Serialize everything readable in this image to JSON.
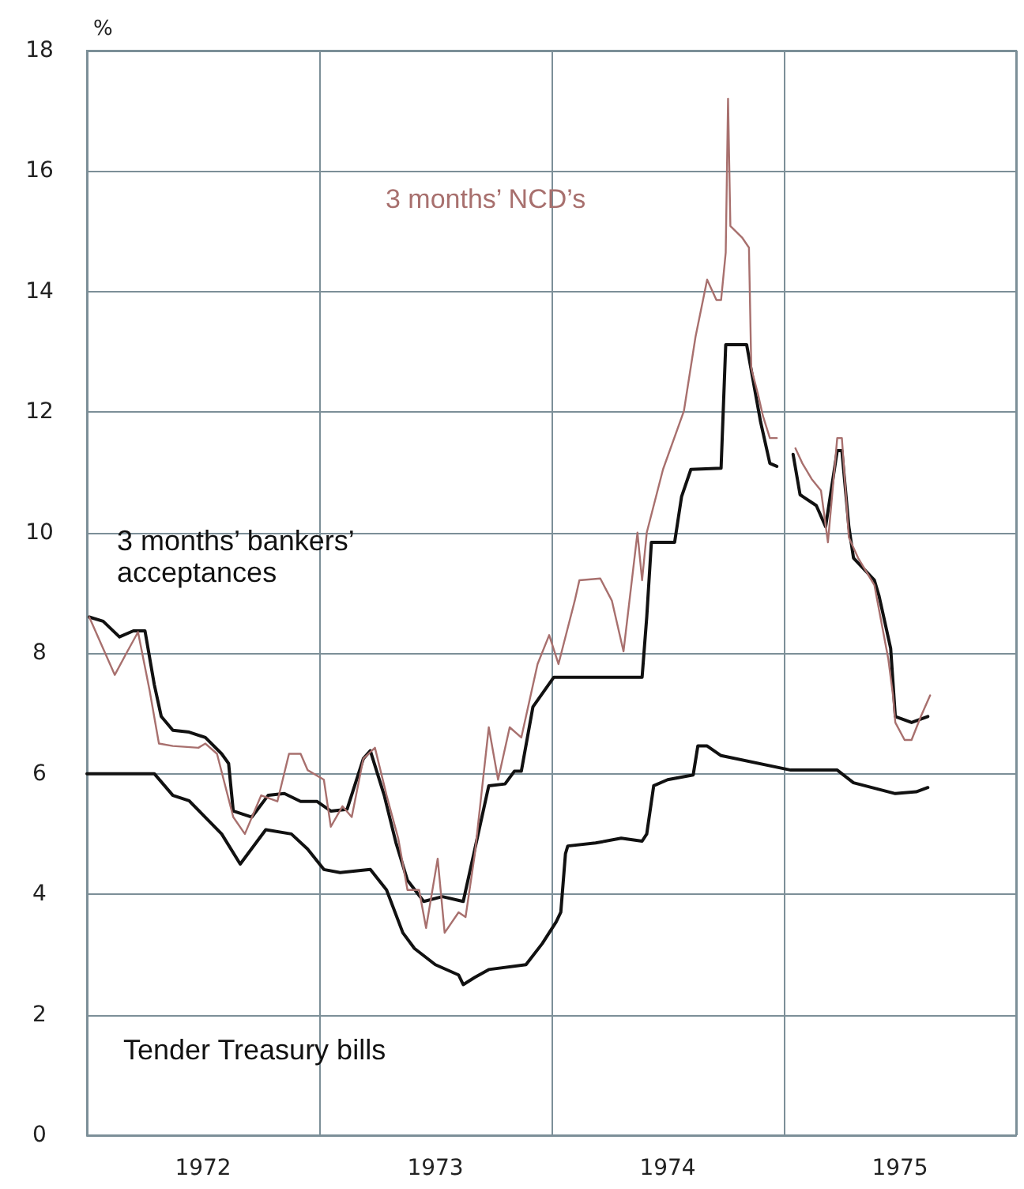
{
  "chart_data": {
    "type": "line",
    "ylabel": "%",
    "xlim": [
      1972,
      1976
    ],
    "ylim": [
      0,
      18
    ],
    "xticks": [
      {
        "value": 1972,
        "label": null
      },
      {
        "value": 1972.5,
        "label": "1972"
      },
      {
        "value": 1973,
        "label": null
      },
      {
        "value": 1973.5,
        "label": "1973"
      },
      {
        "value": 1974,
        "label": null
      },
      {
        "value": 1974.5,
        "label": "1974"
      },
      {
        "value": 1975,
        "label": null
      },
      {
        "value": 1975.5,
        "label": "1975"
      },
      {
        "value": 1976,
        "label": null
      }
    ],
    "yticks": [
      0,
      2,
      4,
      6,
      8,
      10,
      12,
      14,
      16,
      18
    ],
    "grid": true,
    "legend": false,
    "marker": "none",
    "line_style": "solid",
    "series": [
      {
        "name": "3 months’ NCD’s",
        "color": "#a8706e",
        "x": [
          1972.01,
          1972.12,
          1972.17,
          1972.22,
          1972.27,
          1972.31,
          1972.37,
          1972.48,
          1972.51,
          1972.56,
          1972.63,
          1972.68,
          1972.75,
          1972.82,
          1972.87,
          1972.92,
          1972.95,
          1973.02,
          1973.05,
          1973.1,
          1973.14,
          1973.19,
          1973.24,
          1973.29,
          1973.34,
          1973.38,
          1973.43,
          1973.46,
          1973.51,
          1973.54,
          1973.6,
          1973.63,
          1973.67,
          1973.73,
          1973.77,
          1973.82,
          1973.87,
          1973.94,
          1973.99,
          1974.03,
          1974.1,
          1974.12,
          1974.21,
          1974.26,
          1974.31,
          1974.37,
          1974.39,
          1974.41,
          1974.48,
          1974.57,
          1974.62,
          1974.67,
          1974.71,
          1974.73,
          1974.75,
          1974.76,
          1974.77,
          1974.82,
          1974.85,
          1974.86,
          1974.89,
          1974.91,
          1974.94,
          1974.97,
          1974.99,
          1975.05,
          1975.08,
          1975.12,
          1975.16,
          1975.19,
          1975.23,
          1975.25,
          1975.28,
          1975.32,
          1975.39,
          1975.45,
          1975.47,
          1975.48,
          1975.52,
          1975.55,
          1975.59,
          1975.63
        ],
        "values": [
          8.6,
          7.64,
          8.0,
          8.35,
          7.38,
          6.5,
          6.46,
          6.43,
          6.5,
          6.33,
          5.28,
          5.0,
          5.64,
          5.54,
          6.33,
          6.33,
          6.06,
          5.9,
          5.12,
          5.46,
          5.28,
          6.25,
          6.43,
          5.64,
          4.93,
          4.07,
          4.07,
          3.44,
          4.59,
          3.36,
          3.7,
          3.62,
          4.67,
          6.77,
          5.9,
          6.77,
          6.6,
          7.82,
          8.3,
          7.82,
          8.87,
          9.21,
          9.24,
          8.87,
          8.03,
          10.0,
          9.21,
          10.0,
          11.05,
          12.02,
          13.25,
          14.2,
          13.86,
          13.86,
          14.65,
          17.2,
          15.09,
          14.9,
          14.73,
          12.73,
          12.28,
          11.94,
          11.57,
          11.57,
          null,
          11.4,
          11.15,
          10.89,
          10.7,
          9.84,
          11.57,
          11.57,
          9.92,
          9.58,
          9.13,
          7.9,
          7.3,
          6.85,
          6.56,
          6.56,
          6.95,
          7.3
        ]
      },
      {
        "name": "3 months’ bankers’ acceptances",
        "color": "#111111",
        "x": [
          1972.01,
          1972.07,
          1972.14,
          1972.2,
          1972.25,
          1972.29,
          1972.32,
          1972.37,
          1972.44,
          1972.51,
          1972.58,
          1972.61,
          1972.63,
          1972.71,
          1972.78,
          1972.85,
          1972.92,
          1972.99,
          1973.05,
          1973.12,
          1973.19,
          1973.22,
          1973.28,
          1973.33,
          1973.38,
          1973.45,
          1973.53,
          1973.62,
          1973.67,
          1973.73,
          1973.8,
          1973.84,
          1973.87,
          1973.92,
          1974.01,
          1974.39,
          1974.41,
          1974.43,
          1974.53,
          1974.56,
          1974.6,
          1974.73,
          1974.75,
          1974.84,
          1974.9,
          1974.94,
          1974.97,
          1974.99,
          1975.04,
          1975.07,
          1975.14,
          1975.18,
          1975.23,
          1975.25,
          1975.28,
          1975.3,
          1975.39,
          1975.41,
          1975.46,
          1975.48,
          1975.55,
          1975.62
        ],
        "values": [
          8.6,
          8.53,
          8.27,
          8.37,
          8.37,
          7.48,
          6.95,
          6.72,
          6.69,
          6.6,
          6.33,
          6.17,
          5.38,
          5.28,
          5.64,
          5.67,
          5.54,
          5.54,
          5.38,
          5.41,
          6.25,
          6.38,
          5.64,
          4.86,
          4.23,
          3.88,
          3.96,
          3.88,
          4.75,
          5.8,
          5.83,
          6.04,
          6.04,
          7.11,
          7.6,
          7.6,
          8.6,
          9.84,
          9.84,
          10.6,
          11.05,
          11.07,
          13.12,
          13.12,
          11.84,
          11.15,
          11.1,
          null,
          11.3,
          10.63,
          10.45,
          10.1,
          11.36,
          11.36,
          10.1,
          9.58,
          9.21,
          8.95,
          8.08,
          6.95,
          6.85,
          6.95
        ]
      },
      {
        "name": "Tender Treasury bills",
        "color": "#111111",
        "x": [
          1972.0,
          1972.29,
          1972.37,
          1972.44,
          1972.58,
          1972.66,
          1972.77,
          1972.88,
          1972.95,
          1973.02,
          1973.09,
          1973.22,
          1973.29,
          1973.36,
          1973.41,
          1973.5,
          1973.6,
          1973.62,
          1973.67,
          1973.73,
          1973.89,
          1973.96,
          1974.02,
          1974.04,
          1974.06,
          1974.07,
          1974.19,
          1974.3,
          1974.39,
          1974.41,
          1974.44,
          1974.5,
          1974.61,
          1974.63,
          1974.67,
          1974.73,
          1975.03,
          1975.23,
          1975.3,
          1975.48,
          1975.57,
          1975.62
        ],
        "values": [
          6.0,
          6.0,
          5.64,
          5.55,
          5.0,
          4.5,
          5.07,
          5.0,
          4.75,
          4.41,
          4.36,
          4.41,
          4.07,
          3.36,
          3.1,
          2.83,
          2.66,
          2.5,
          2.62,
          2.75,
          2.83,
          3.18,
          3.54,
          3.7,
          4.67,
          4.8,
          4.85,
          4.93,
          4.88,
          5.0,
          5.8,
          5.9,
          5.98,
          6.46,
          6.46,
          6.3,
          6.06,
          6.06,
          5.85,
          5.67,
          5.7,
          5.77
        ]
      }
    ]
  }
}
